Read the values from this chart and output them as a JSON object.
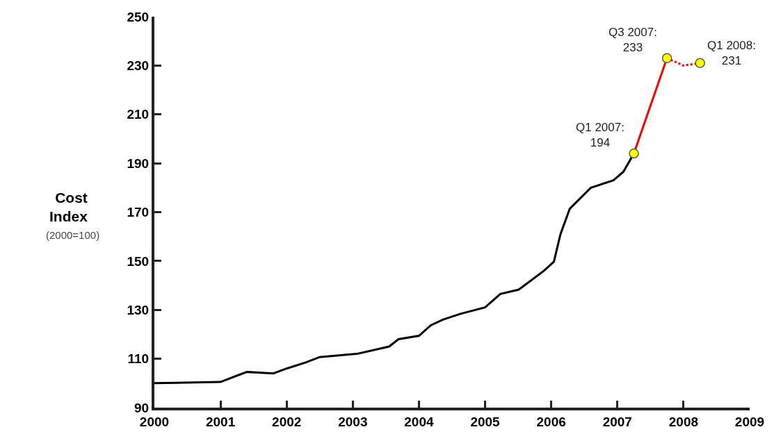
{
  "chart_data": {
    "type": "line",
    "ylabel": "Cost Index",
    "xlim": [
      2000,
      2009
    ],
    "xticks": [
      2000,
      2001,
      2002,
      2003,
      2004,
      2005,
      2006,
      2007,
      2008,
      2009
    ],
    "ylim": [
      90,
      250
    ],
    "yticks": [
      90,
      110,
      130,
      150,
      170,
      190,
      210,
      230,
      250
    ],
    "grid": false,
    "legend": false,
    "series": [
      {
        "color": "#000000",
        "line_style": "solid",
        "x": [
          2000,
          2001,
          2001.24,
          2001.4,
          2001.8,
          2002,
          2002.29,
          2002.5,
          2003.06,
          2003.55,
          2003.69,
          2004,
          2004.18,
          2004.36,
          2004.63,
          2005,
          2005.23,
          2005.51,
          2005.89,
          2006.04,
          2006.14,
          2006.28,
          2006.6,
          2006.94,
          2007.09,
          2007.25
        ],
        "values": [
          100,
          100.5,
          103,
          104.6,
          104,
          106,
          108.5,
          110.7,
          112,
          115,
          118,
          119.4,
          123.7,
          126,
          128.4,
          131,
          136.5,
          138.3,
          146,
          149.7,
          161,
          171.4,
          180,
          183,
          186.5,
          194
        ]
      },
      {
        "color": "#ff0000",
        "line_style": "solid",
        "x": [
          2007.25,
          2007.75
        ],
        "values": [
          194,
          233
        ]
      },
      {
        "color": "#ff0000",
        "line_style": "dotted",
        "x": [
          2007.75,
          2008,
          2008.25
        ],
        "values": [
          233,
          230,
          231
        ]
      },
      {
        "type": "scatter",
        "marker": "circle",
        "color": "#ffff00",
        "x": [
          2007.25,
          2007.75,
          2008.25
        ],
        "values": [
          194,
          233,
          231
        ]
      }
    ],
    "annotations": [
      {
        "text": "Q1 2007:\n194",
        "x": 2007.25,
        "y": 194
      },
      {
        "text": "Q3 2007:\n233",
        "x": 2007.75,
        "y": 233
      },
      {
        "text": "Q1 2008:\n231",
        "x": 2008.25,
        "y": 231
      },
      "(2000=100)"
    ]
  }
}
